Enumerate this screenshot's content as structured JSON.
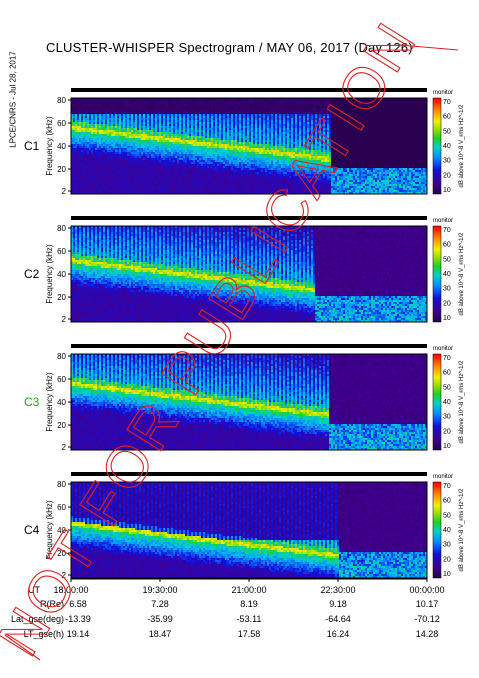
{
  "title": "CLUSTER-WHISPER Spectrogram / MAY 06, 2017 (Day 126)",
  "side_stamp": "LPCE/CNRS - Jul 28, 2017",
  "watermark": "NOT FOR PUBLICATION",
  "colors": {
    "c3_label": "#22aa22",
    "default_label": "#000000",
    "watermark": "#e02020"
  },
  "chart_data": {
    "type": "heatmap",
    "panels": [
      {
        "spacecraft": "C1",
        "ylabel": "Frequency (kHz)",
        "yticks": [
          "2",
          "20",
          "40",
          "60",
          "80"
        ],
        "colorbar_ticks": [
          "70",
          "60",
          "50",
          "40",
          "30",
          "20",
          "10"
        ],
        "colorbar_label": "dB above 10^-8 V_rms Hz^-1/2",
        "colorbar_top": "monitor"
      },
      {
        "spacecraft": "C2",
        "ylabel": "Frequency (kHz)",
        "yticks": [
          "2",
          "20",
          "40",
          "60",
          "80"
        ],
        "colorbar_ticks": [
          "70",
          "60",
          "50",
          "40",
          "30",
          "20",
          "10"
        ],
        "colorbar_label": "dB above 10^-8 V_rms Hz^-1/2",
        "colorbar_top": "monitor"
      },
      {
        "spacecraft": "C3",
        "ylabel": "Frequency (kHz)",
        "yticks": [
          "2",
          "20",
          "40",
          "60",
          "80"
        ],
        "colorbar_ticks": [
          "70",
          "60",
          "50",
          "40",
          "30",
          "20",
          "10"
        ],
        "colorbar_label": "dB above 10^-8 V_rms Hz^-1/2",
        "colorbar_top": "monitor"
      },
      {
        "spacecraft": "C4",
        "ylabel": "Frequency (kHz)",
        "yticks": [
          "2",
          "20",
          "40",
          "60",
          "80"
        ],
        "colorbar_ticks": [
          "70",
          "60",
          "50",
          "40",
          "30",
          "20",
          "10"
        ],
        "colorbar_label": "dB above 10^-8 V_rms Hz^-1/2",
        "colorbar_top": "monitor"
      }
    ],
    "x_axis": {
      "label": "UT",
      "ticks": [
        "18:00:00",
        "19:30:00",
        "21:00:00",
        "22:30:00",
        "00:00:00"
      ]
    },
    "ephemeris": [
      {
        "label": "R(Re)",
        "values": [
          "6.58",
          "7.28",
          "8.19",
          "9.18",
          "10.17"
        ]
      },
      {
        "label": "Lat_gse(deg)",
        "values": [
          "-13.39",
          "-35.99",
          "-53.11",
          "-64.64",
          "-70.12"
        ]
      },
      {
        "label": "LT_gse(h)",
        "values": [
          "19.14",
          "18.47",
          "17.58",
          "16.24",
          "14.28"
        ]
      }
    ],
    "colorscale_range_db": [
      5,
      72
    ]
  }
}
